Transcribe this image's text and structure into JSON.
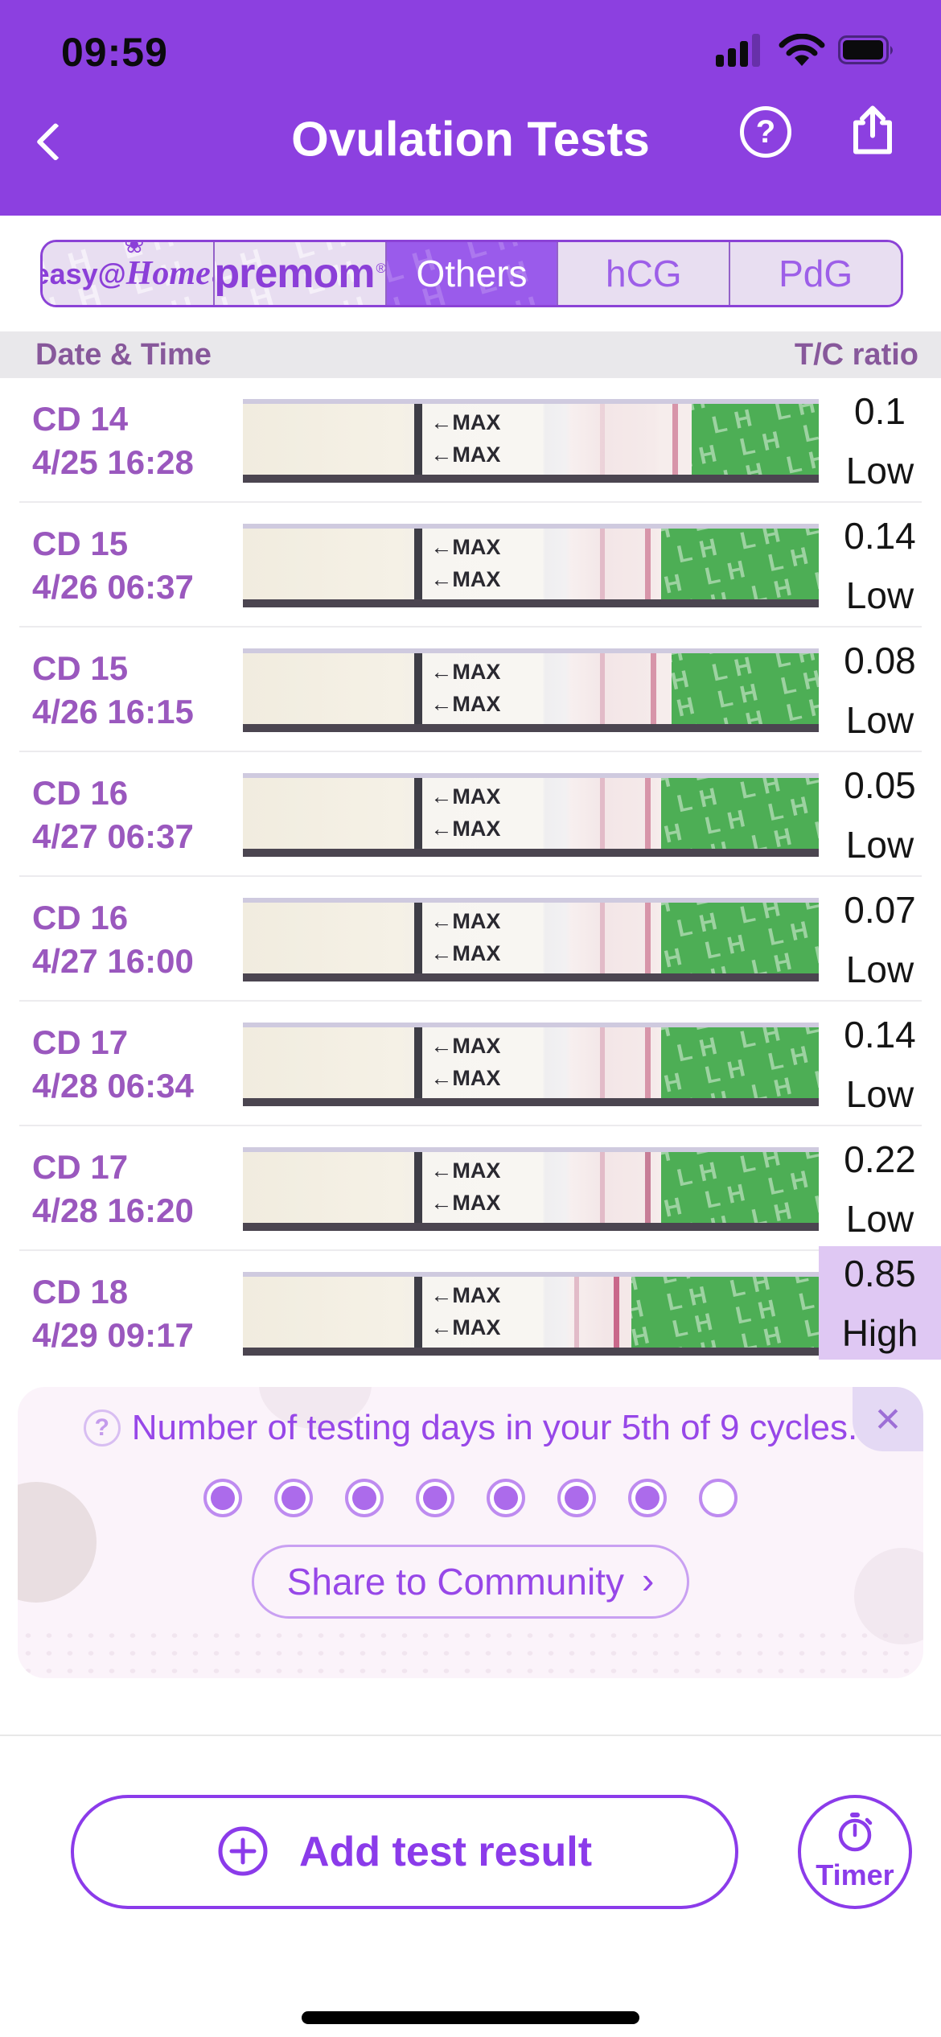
{
  "status_bar": {
    "time": "09:59"
  },
  "header": {
    "title": "Ovulation Tests",
    "help_glyph": "?"
  },
  "tabs": {
    "watermark_text": "LH",
    "reg_mark": "®",
    "items": [
      {
        "id": "easy-home",
        "brand_prefix": "easy@",
        "brand_suffix": "Home",
        "selected": false
      },
      {
        "id": "premom",
        "label": "premom",
        "selected": false
      },
      {
        "id": "others",
        "label": "Others",
        "selected": true
      },
      {
        "id": "hcg",
        "label": "hCG",
        "selected": false
      },
      {
        "id": "pdg",
        "label": "PdG",
        "selected": false
      }
    ]
  },
  "table": {
    "col_left": "Date & Time",
    "col_right": "T/C ratio"
  },
  "strip": {
    "max_label": "←MAX",
    "pattern_text": "LH"
  },
  "rows": [
    {
      "cd": "CD 14",
      "datetime": "4/25 16:28",
      "ratio": "0.1",
      "level": "Low",
      "highlight": false
    },
    {
      "cd": "CD 15",
      "datetime": "4/26 06:37",
      "ratio": "0.14",
      "level": "Low",
      "highlight": false
    },
    {
      "cd": "CD 15",
      "datetime": "4/26 16:15",
      "ratio": "0.08",
      "level": "Low",
      "highlight": false
    },
    {
      "cd": "CD 16",
      "datetime": "4/27 06:37",
      "ratio": "0.05",
      "level": "Low",
      "highlight": false
    },
    {
      "cd": "CD 16",
      "datetime": "4/27 16:00",
      "ratio": "0.07",
      "level": "Low",
      "highlight": false
    },
    {
      "cd": "CD 17",
      "datetime": "4/28 06:34",
      "ratio": "0.14",
      "level": "Low",
      "highlight": false
    },
    {
      "cd": "CD 17",
      "datetime": "4/28 16:20",
      "ratio": "0.22",
      "level": "Low",
      "highlight": false
    },
    {
      "cd": "CD 18",
      "datetime": "4/29 09:17",
      "ratio": "0.85",
      "level": "High",
      "highlight": true
    }
  ],
  "banner": {
    "help_glyph": "?",
    "title": "Number of testing days in your 5th of 9 cycles.",
    "dots_total": 8,
    "dots_filled": 7,
    "share_label": "Share to Community",
    "share_chevron": "›",
    "close_glyph": "✕"
  },
  "bottom": {
    "add_label": "Add test result",
    "timer_label": "Timer"
  },
  "colors": {
    "header_purple": "#8C40E0",
    "selected_tab_purple": "#9A5BEB",
    "tab_inactive_bg": "#E8DEF1",
    "tab_border": "#8B42D6",
    "tab_text": "#9D5FE8",
    "table_header_bg": "#E9E8EB",
    "table_header_text": "#87589B",
    "row_date_text": "#9A58BE",
    "ratio_text": "#141414",
    "high_cell_bg": "#DFC8F3",
    "strip_green": "#4DAE55",
    "strip_pink_line": "#C9688A",
    "banner_bg": "#FBF3FA",
    "banner_text": "#9747E8",
    "accent_purple": "#8B3BEA"
  }
}
